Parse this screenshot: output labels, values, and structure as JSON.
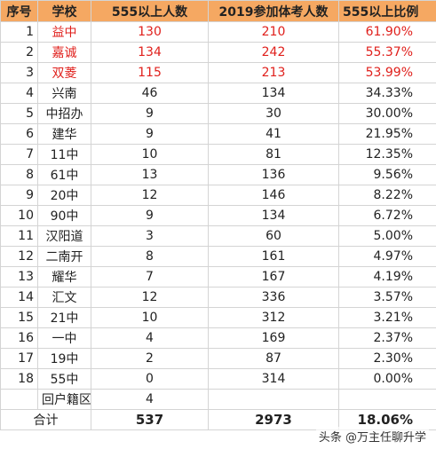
{
  "table": {
    "header": [
      "序号",
      "学校",
      "555以上人数",
      "2019参加体考人数",
      "555以上比例"
    ],
    "rows": [
      [
        "1",
        "益中",
        "130",
        "210",
        "61.90%"
      ],
      [
        "2",
        "嘉诚",
        "134",
        "242",
        "55.37%"
      ],
      [
        "3",
        "双菱",
        "115",
        "213",
        "53.99%"
      ],
      [
        "4",
        "兴南",
        "46",
        "134",
        "34.33%"
      ],
      [
        "5",
        "中招办",
        "9",
        "30",
        "30.00%"
      ],
      [
        "6",
        "建华",
        "9",
        "41",
        "21.95%"
      ],
      [
        "7",
        "11中",
        "10",
        "81",
        "12.35%"
      ],
      [
        "8",
        "61中",
        "13",
        "136",
        "9.56%"
      ],
      [
        "9",
        "20中",
        "12",
        "146",
        "8.22%"
      ],
      [
        "10",
        "90中",
        "9",
        "134",
        "6.72%"
      ],
      [
        "11",
        "汉阳道",
        "3",
        "60",
        "5.00%"
      ],
      [
        "12",
        "二南开",
        "8",
        "161",
        "4.97%"
      ],
      [
        "13",
        "耀华",
        "7",
        "167",
        "4.19%"
      ],
      [
        "14",
        "汇文",
        "12",
        "336",
        "3.57%"
      ],
      [
        "15",
        "21中",
        "10",
        "312",
        "3.21%"
      ],
      [
        "16",
        "一中",
        "4",
        "169",
        "2.37%"
      ],
      [
        "17",
        "19中",
        "2",
        "87",
        "2.30%"
      ],
      [
        "18",
        "55中",
        "0",
        "314",
        "0.00%"
      ],
      [
        "",
        "回户籍区",
        "4",
        "",
        ""
      ]
    ],
    "total": [
      "合计",
      "537",
      "2973",
      "18.06%"
    ]
  },
  "watermark": "头条 @万主任聊升学"
}
